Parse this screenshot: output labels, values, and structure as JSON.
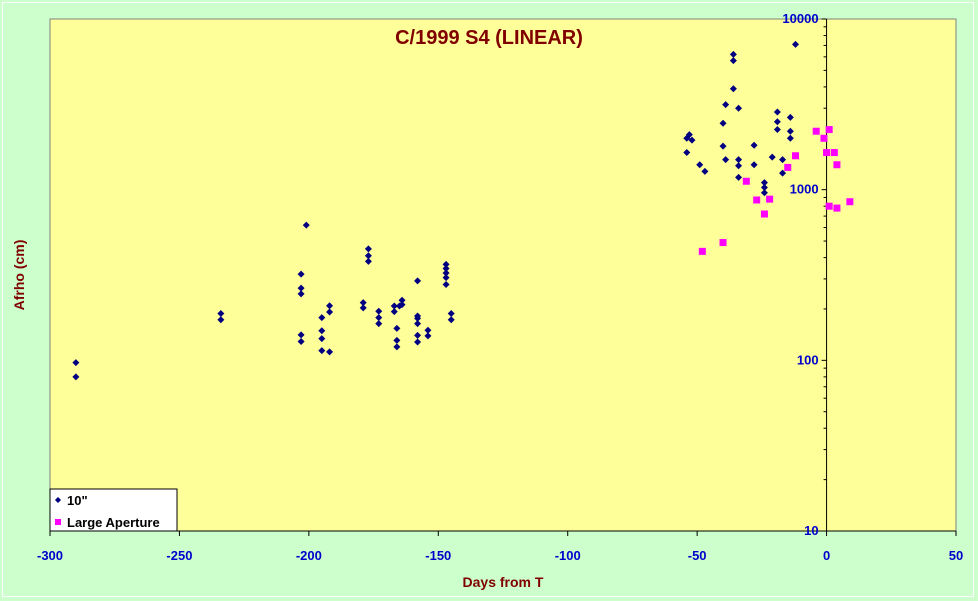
{
  "chart_data": {
    "type": "scatter",
    "title": "C/1999 S4 (LINEAR)",
    "xlabel": "Days from T",
    "ylabel": "Afrho (cm)",
    "xlim": [
      -300,
      50
    ],
    "ylim": [
      10,
      10000
    ],
    "yscale": "log",
    "x_ticks": [
      -300,
      -250,
      -200,
      -150,
      -100,
      -50,
      0,
      50
    ],
    "y_ticks": [
      10,
      100,
      1000,
      10000
    ],
    "grid": false,
    "legend_position": "bottom-left",
    "colors": {
      "plot_background": "#ffff99",
      "page_background": "#ccffcc",
      "title": "#800000",
      "axis_label": "#800000",
      "tick_label": "#0000cc",
      "series_10in": "#000080",
      "series_large": "#ff00ff"
    },
    "series": [
      {
        "name": "10\"",
        "marker": "diamond",
        "points": [
          [
            -290,
            97
          ],
          [
            -290,
            80
          ],
          [
            -234,
            188
          ],
          [
            -234,
            173
          ],
          [
            -203,
            320
          ],
          [
            -203,
            265
          ],
          [
            -203,
            245
          ],
          [
            -203,
            141
          ],
          [
            -203,
            129
          ],
          [
            -201,
            620
          ],
          [
            -195,
            178
          ],
          [
            -195,
            149
          ],
          [
            -195,
            134
          ],
          [
            -195,
            114
          ],
          [
            -192,
            209
          ],
          [
            -192,
            192
          ],
          [
            -192,
            112
          ],
          [
            -179,
            218
          ],
          [
            -179,
            203
          ],
          [
            -177,
            450
          ],
          [
            -177,
            410
          ],
          [
            -177,
            380
          ],
          [
            -173,
            194
          ],
          [
            -173,
            178
          ],
          [
            -173,
            164
          ],
          [
            -167,
            208
          ],
          [
            -167,
            193
          ],
          [
            -166,
            131
          ],
          [
            -166,
            120
          ],
          [
            -166,
            154
          ],
          [
            -165,
            208
          ],
          [
            -164,
            225
          ],
          [
            -164,
            212
          ],
          [
            -158,
            292
          ],
          [
            -158,
            182
          ],
          [
            -158,
            176
          ],
          [
            -158,
            164
          ],
          [
            -158,
            140
          ],
          [
            -158,
            128
          ],
          [
            -154,
            150
          ],
          [
            -154,
            139
          ],
          [
            -147,
            365
          ],
          [
            -147,
            345
          ],
          [
            -147,
            325
          ],
          [
            -147,
            305
          ],
          [
            -147,
            278
          ],
          [
            -145,
            188
          ],
          [
            -145,
            173
          ],
          [
            -54,
            2000
          ],
          [
            -54,
            1650
          ],
          [
            -53,
            2100
          ],
          [
            -52,
            1950
          ],
          [
            -49,
            1400
          ],
          [
            -47,
            1280
          ],
          [
            -40,
            2450
          ],
          [
            -40,
            1800
          ],
          [
            -39,
            3150
          ],
          [
            -39,
            1500
          ],
          [
            -36,
            6200
          ],
          [
            -36,
            5700
          ],
          [
            -36,
            3900
          ],
          [
            -34,
            3000
          ],
          [
            -34,
            1500
          ],
          [
            -34,
            1380
          ],
          [
            -34,
            1180
          ],
          [
            -28,
            1400
          ],
          [
            -28,
            1820
          ],
          [
            -24,
            1100
          ],
          [
            -24,
            1030
          ],
          [
            -24,
            960
          ],
          [
            -21,
            1550
          ],
          [
            -19,
            2850
          ],
          [
            -19,
            2500
          ],
          [
            -19,
            2250
          ],
          [
            -17,
            1500
          ],
          [
            -17,
            1250
          ],
          [
            -14,
            2650
          ],
          [
            -14,
            2200
          ],
          [
            -14,
            2000
          ],
          [
            -12,
            7100
          ]
        ]
      },
      {
        "name": "Large Aperture",
        "marker": "square",
        "points": [
          [
            -48,
            435
          ],
          [
            -40,
            490
          ],
          [
            -31,
            1120
          ],
          [
            -27,
            870
          ],
          [
            -24,
            720
          ],
          [
            -22,
            880
          ],
          [
            -15,
            1350
          ],
          [
            -12,
            1580
          ],
          [
            -4,
            2200
          ],
          [
            -1,
            2000
          ],
          [
            0,
            1650
          ],
          [
            1,
            2250
          ],
          [
            1,
            800
          ],
          [
            3,
            1650
          ],
          [
            4,
            1400
          ],
          [
            4,
            780
          ],
          [
            9,
            850
          ]
        ]
      }
    ]
  }
}
